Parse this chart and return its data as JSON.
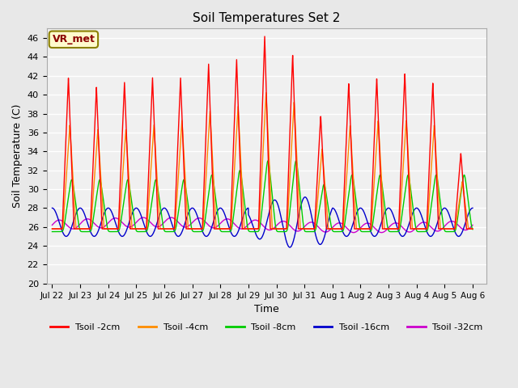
{
  "title": "Soil Temperatures Set 2",
  "xlabel": "Time",
  "ylabel": "Soil Temperature (C)",
  "ylim": [
    20,
    47
  ],
  "yticks": [
    20,
    22,
    24,
    26,
    28,
    30,
    32,
    34,
    36,
    38,
    40,
    42,
    44,
    46
  ],
  "annotation_text": "VR_met",
  "annotation_color": "#8B0000",
  "annotation_bg": "#FFFACD",
  "annotation_border": "#8B8000",
  "bg_color": "#E8E8E8",
  "plot_bg": "#F0F0F0",
  "series_colors": {
    "2cm": "#FF0000",
    "4cm": "#FF8C00",
    "8cm": "#00CC00",
    "16cm": "#0000CC",
    "32cm": "#CC00CC"
  },
  "legend_labels": [
    "Tsoil -2cm",
    "Tsoil -4cm",
    "Tsoil -8cm",
    "Tsoil -16cm",
    "Tsoil -32cm"
  ],
  "x_tick_labels": [
    "Jul 22",
    "Jul 23",
    "Jul 24",
    "Jul 25",
    "Jul 26",
    "Jul 27",
    "Jul 28",
    "Jul 29",
    "Jul 30",
    "Jul 31",
    "Aug 1",
    "Aug 2",
    "Aug 3",
    "Aug 4",
    "Aug 5",
    "Aug 6"
  ],
  "x_tick_positions": [
    0,
    1,
    2,
    3,
    4,
    5,
    6,
    7,
    8,
    9,
    10,
    11,
    12,
    13,
    14,
    15
  ]
}
